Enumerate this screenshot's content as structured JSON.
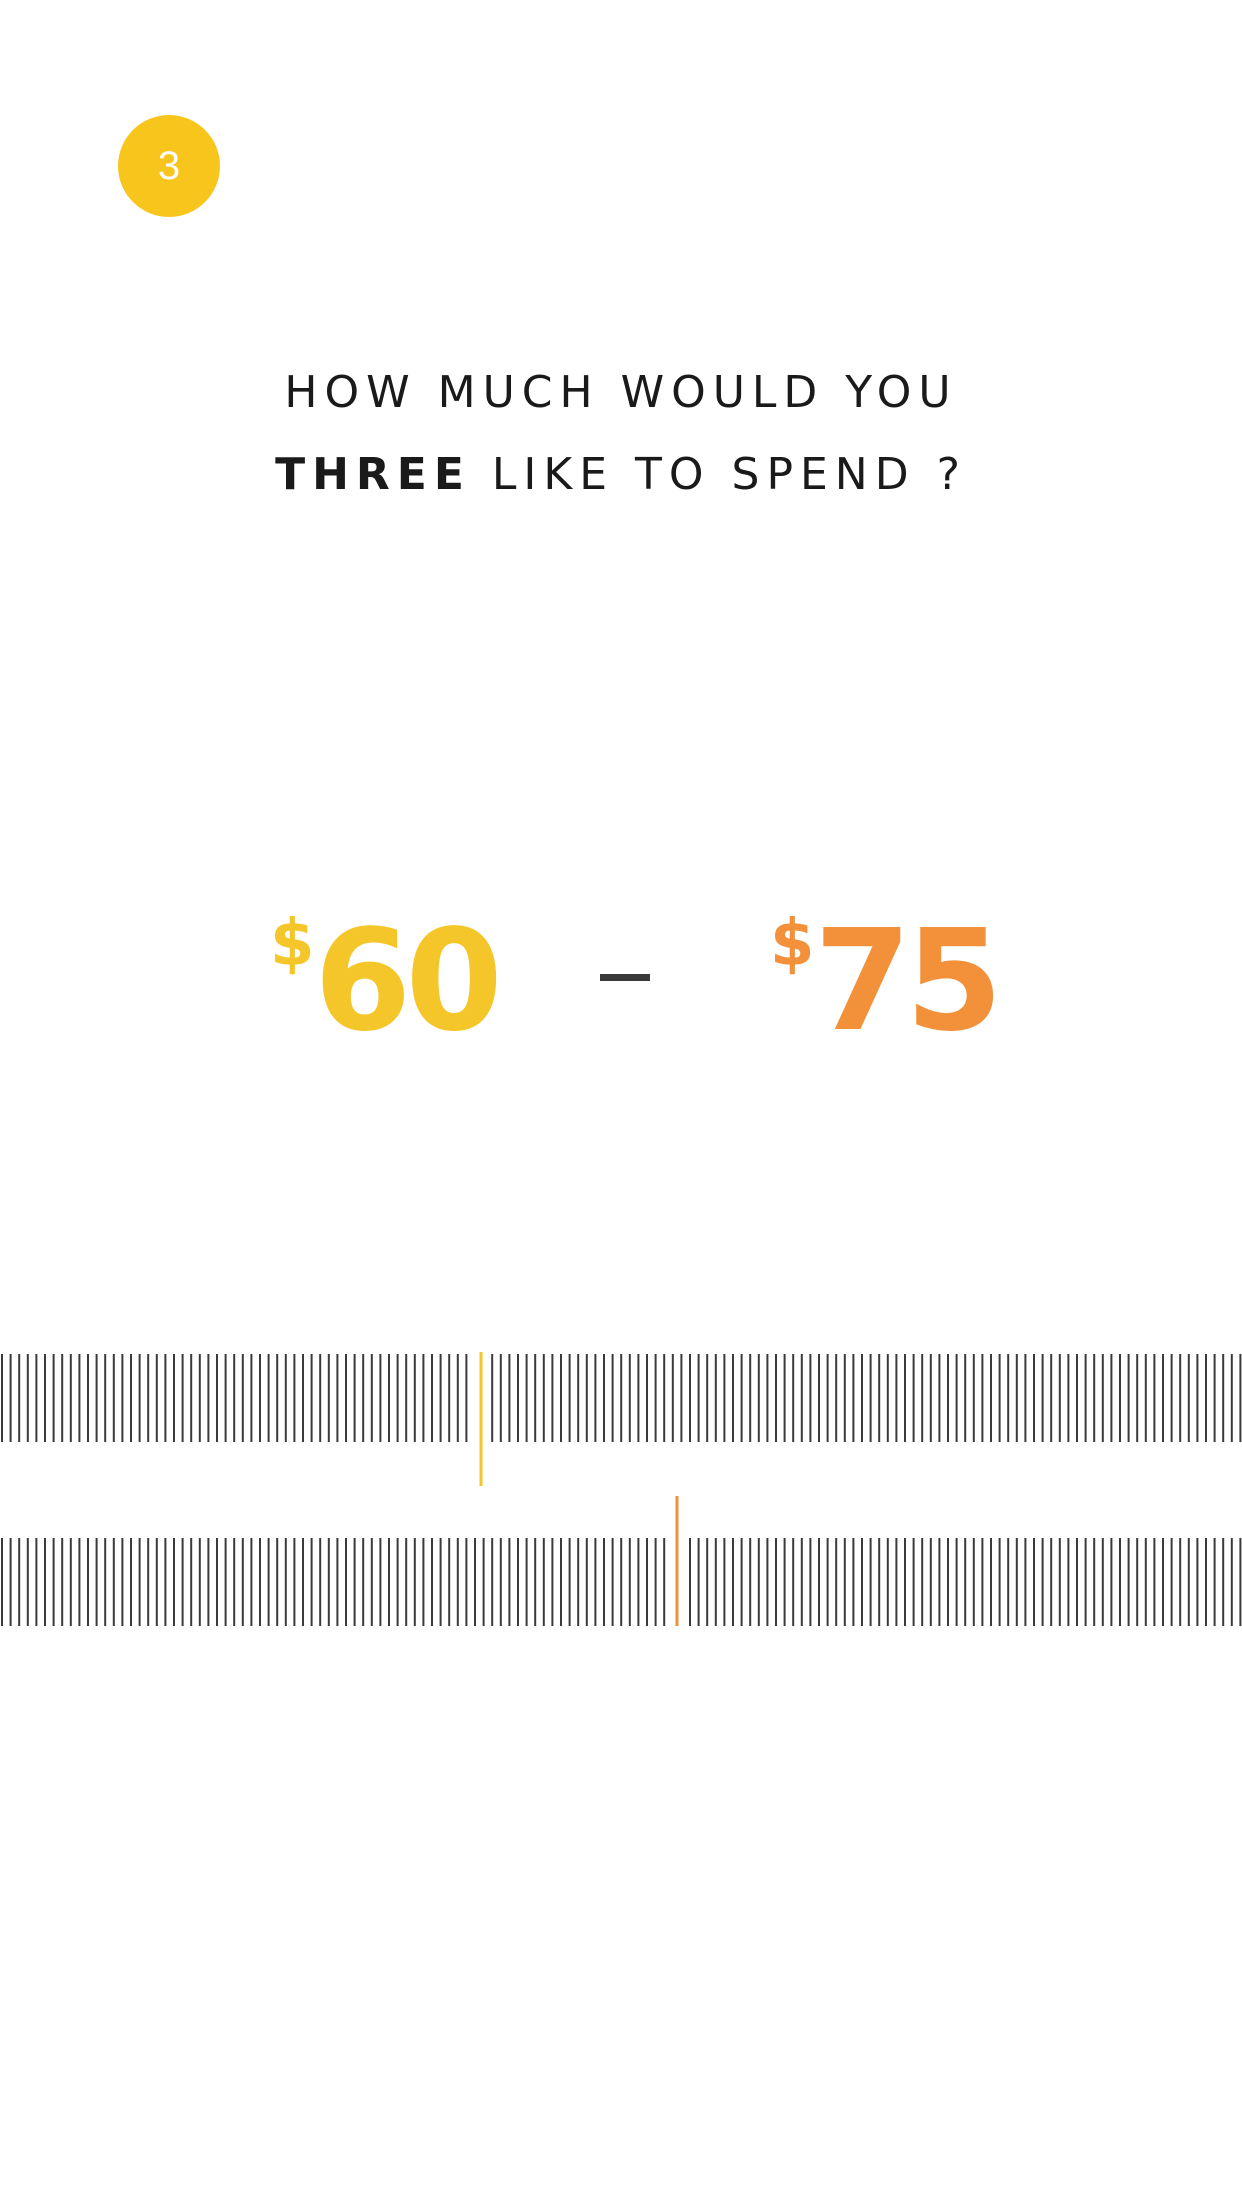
{
  "step": {
    "number": "3",
    "color": "#F8C51C"
  },
  "question": {
    "line1": "HOW MUCH WOULD YOU",
    "line2_bold": "THREE",
    "line2_rest": " LIKE TO SPEND ?"
  },
  "price_range": {
    "min": {
      "currency": "$",
      "amount": "60",
      "color": "#F5C629"
    },
    "separator": "–",
    "max": {
      "currency": "$",
      "amount": "75",
      "color": "#F3913A"
    }
  },
  "sliders": {
    "min_slider": {
      "indicator_color": "#F5C629",
      "tick_color": "#3a3a3a"
    },
    "max_slider": {
      "indicator_color": "#F3913A",
      "tick_color": "#3a3a3a"
    }
  }
}
